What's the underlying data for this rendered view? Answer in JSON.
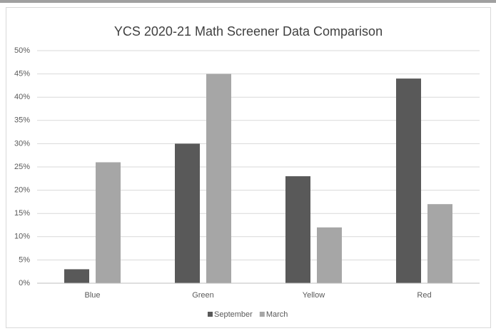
{
  "chart_data": {
    "type": "bar",
    "title": "YCS 2020-21 Math Screener Data Comparison",
    "categories": [
      "Blue",
      "Green",
      "Yellow",
      "Red"
    ],
    "series": [
      {
        "name": "September",
        "color": "#595959",
        "values": [
          3,
          30,
          23,
          44
        ]
      },
      {
        "name": "March",
        "color": "#a6a6a6",
        "values": [
          26,
          45,
          12,
          17
        ]
      }
    ],
    "ylim": [
      0,
      50
    ],
    "yticks": [
      {
        "value": 0,
        "label": "0%"
      },
      {
        "value": 5,
        "label": "5%"
      },
      {
        "value": 10,
        "label": "10%"
      },
      {
        "value": 15,
        "label": "15%"
      },
      {
        "value": 20,
        "label": "20%"
      },
      {
        "value": 25,
        "label": "25%"
      },
      {
        "value": 30,
        "label": "30%"
      },
      {
        "value": 35,
        "label": "35%"
      },
      {
        "value": 40,
        "label": "40%"
      },
      {
        "value": 45,
        "label": "45%"
      },
      {
        "value": 50,
        "label": "50%"
      }
    ],
    "grid": true,
    "legend": "bottom"
  }
}
